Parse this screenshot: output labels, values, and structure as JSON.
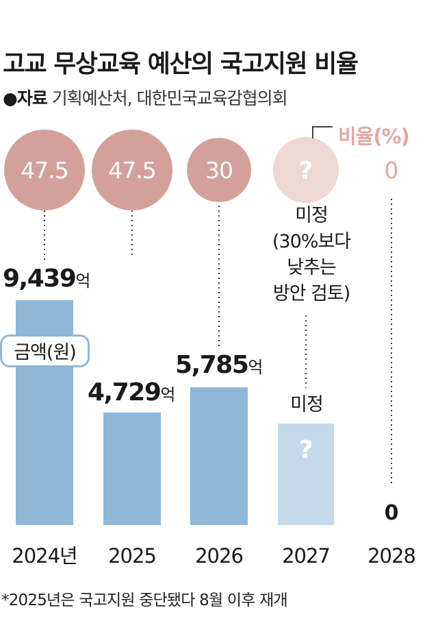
{
  "title": "고교 무상교육 예산의 국고지원 비율",
  "source": {
    "label": "●자료",
    "text": "기획예산처, 대한민국교육감협의회"
  },
  "legend": {
    "rate": "비율(%)",
    "amount": "금액(원)"
  },
  "note_2027": [
    "미정",
    "(30%보다",
    "낮추는",
    "방안 검토)"
  ],
  "footnote": "*2025년은 국고지원 중단됐다 8월 이후 재개",
  "chart_data": {
    "type": "bar",
    "categories": [
      "2024년",
      "2025",
      "2026",
      "2027",
      "2028"
    ],
    "amount_unit": "억",
    "amount_values": [
      9439,
      4729,
      5785,
      null,
      0
    ],
    "amount_labels": [
      "9,439",
      "4,729",
      "5,785",
      "미정",
      "0"
    ],
    "rate_values": [
      47.5,
      47.5,
      30,
      null,
      0
    ],
    "rate_labels": [
      "47.5",
      "47.5",
      "30",
      "?",
      "0"
    ],
    "undecided_mark": "?",
    "colors": {
      "bar": "#8fb7d8",
      "bar_undecided": "#c5d9ec",
      "circle": "#d4a19a",
      "circle_light": "#efd7d3",
      "rate_zero": "#e0a9a3"
    }
  }
}
